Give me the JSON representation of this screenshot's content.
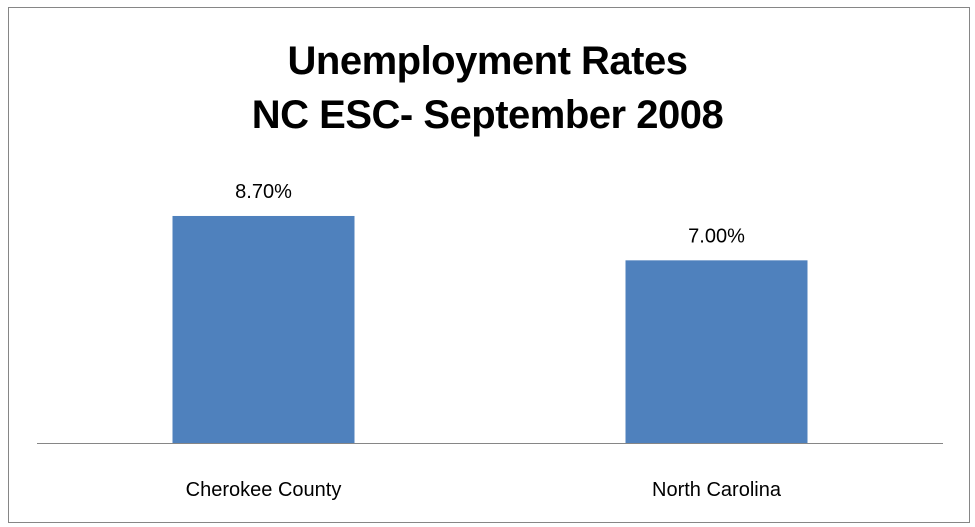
{
  "chart_data": {
    "type": "bar",
    "title": [
      "Unemployment Rates",
      "NC ESC- September 2008"
    ],
    "categories": [
      "Cherokee County",
      "North Carolina"
    ],
    "values": [
      8.7,
      7.0
    ],
    "data_labels": [
      "8.70%",
      "7.00%"
    ],
    "xlabel": "",
    "ylabel": "",
    "ylim": [
      0,
      10.5
    ],
    "grid": false,
    "legend": "none",
    "colors": {
      "bar": "#4f81bd",
      "axis": "#868686",
      "frame": "#868686"
    }
  }
}
